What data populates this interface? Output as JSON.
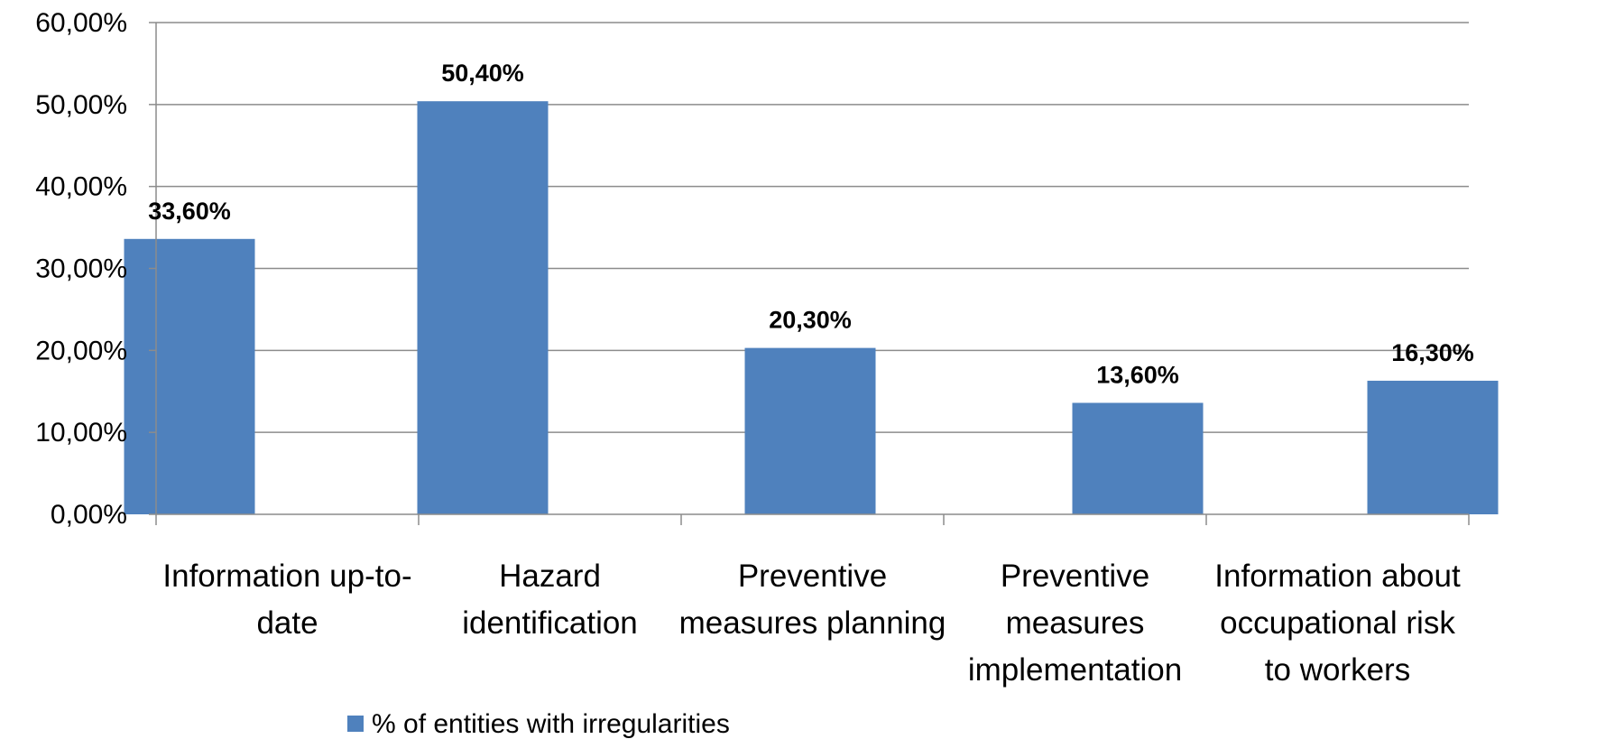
{
  "chart_data": {
    "type": "bar",
    "title": "",
    "xlabel": "",
    "ylabel": "",
    "categories": [
      [
        "Information up-to-",
        "date"
      ],
      [
        "Hazard",
        "identification"
      ],
      [
        "Preventive",
        "measures planning"
      ],
      [
        "Preventive",
        "measures",
        "implementation"
      ],
      [
        "Information about",
        "occupational risk",
        "to workers"
      ]
    ],
    "series": [
      {
        "name": "% of entities with irregularities",
        "values": [
          33.6,
          50.4,
          20.3,
          13.6,
          16.3
        ],
        "data_labels": [
          "33,60%",
          "50,40%",
          "20,30%",
          "13,60%",
          "16,30%"
        ],
        "color": "#4F81BD"
      }
    ],
    "ylim": [
      0,
      60
    ],
    "yticks": [
      0,
      10,
      20,
      30,
      40,
      50,
      60
    ],
    "ytick_labels": [
      "0,00%",
      "10,00%",
      "20,00%",
      "30,00%",
      "40,00%",
      "50,00%",
      "60,00%"
    ],
    "grid": true,
    "gridline_color": "#8C8C8C",
    "legend_position": "bottom"
  }
}
